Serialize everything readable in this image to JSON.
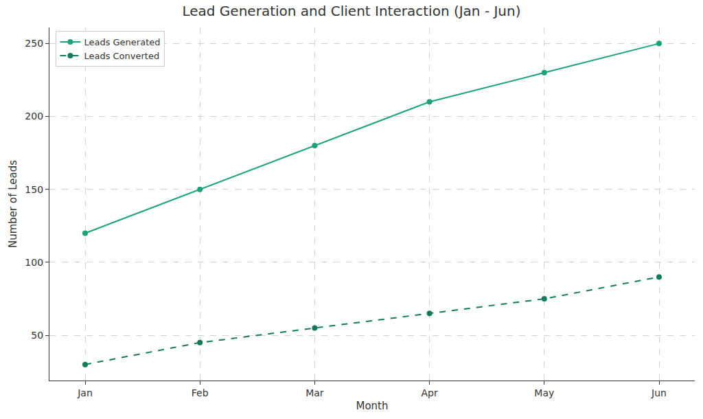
{
  "chart_data": {
    "type": "line",
    "title": "Lead Generation and Client Interaction (Jan - Jun)",
    "x_label": "Month",
    "y_label": "Number of Leads",
    "categories": [
      "Jan",
      "Feb",
      "Mar",
      "Apr",
      "May",
      "Jun"
    ],
    "series": [
      {
        "name": "Leads Generated",
        "color": "#1aa37a",
        "marker": "circle",
        "line_style": "solid",
        "values": [
          120,
          150,
          180,
          210,
          230,
          250
        ]
      },
      {
        "name": "Leads Converted",
        "color": "#137a5c",
        "marker": "circle",
        "line_style": "dashed",
        "values": [
          30,
          45,
          55,
          65,
          75,
          90
        ]
      }
    ],
    "ylim": [
      19,
      261
    ],
    "yticks": [
      50,
      100,
      150,
      200,
      250
    ],
    "grid": true,
    "legend": "upper left"
  }
}
